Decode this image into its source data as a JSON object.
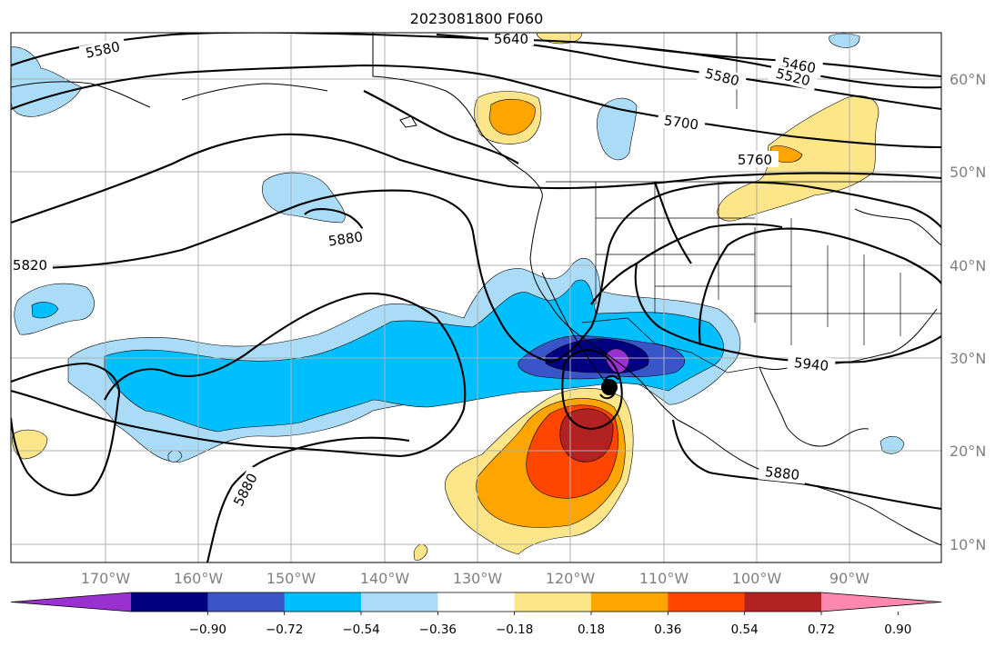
{
  "title": "2023081800 F060",
  "map": {
    "lon_labels": [
      "170°W",
      "160°W",
      "150°W",
      "140°W",
      "130°W",
      "120°W",
      "110°W",
      "100°W",
      "90°W"
    ],
    "lat_labels": [
      "60°N",
      "50°N",
      "40°N",
      "30°N",
      "20°N",
      "10°N"
    ],
    "contour_labels": [
      "5580",
      "5640",
      "5460",
      "5580",
      "5520",
      "5700",
      "5760",
      "5880",
      "5820",
      "5940",
      "5880",
      "5880"
    ],
    "hurricane_symbol": "tropical-cyclone-marker"
  },
  "colorbar": {
    "tick_labels": [
      "−0.90",
      "−0.72",
      "−0.54",
      "−0.36",
      "−0.18",
      "0.18",
      "0.36",
      "0.54",
      "0.72",
      "0.90"
    ],
    "colors": [
      "#9b30d0",
      "#000080",
      "#3a55c8",
      "#00bfff",
      "#aadcf8",
      "#ffffff",
      "#fde68a",
      "#ffa500",
      "#ff4500",
      "#b22222",
      "#ff88b0"
    ]
  }
}
